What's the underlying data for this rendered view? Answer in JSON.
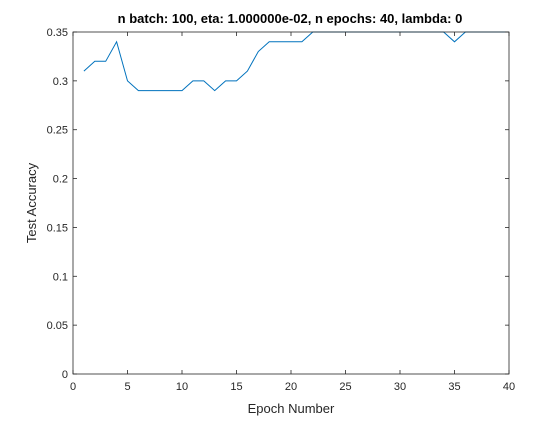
{
  "chart_data": {
    "type": "line",
    "title": "n batch: 100, eta: 1.000000e-02, n epochs: 40, lambda: 0",
    "xlabel": "Epoch Number",
    "ylabel": "Test Accuracy",
    "xlim": [
      0,
      40
    ],
    "ylim": [
      0,
      0.35
    ],
    "xticks": [
      0,
      5,
      10,
      15,
      20,
      25,
      30,
      35,
      40
    ],
    "xtick_labels": [
      "0",
      "5",
      "10",
      "15",
      "20",
      "25",
      "30",
      "35",
      "40"
    ],
    "yticks": [
      0,
      0.05,
      0.1,
      0.15,
      0.2,
      0.25,
      0.3,
      0.35
    ],
    "ytick_labels": [
      "0",
      "0.05",
      "0.1",
      "0.15",
      "0.2",
      "0.25",
      "0.3",
      "0.35"
    ],
    "grid": false,
    "series": [
      {
        "color": "#0072bd",
        "x": [
          1,
          2,
          3,
          4,
          5,
          6,
          7,
          8,
          9,
          10,
          11,
          12,
          13,
          14,
          15,
          16,
          17,
          18,
          19,
          20,
          21,
          22,
          23,
          24,
          25,
          26,
          27,
          28,
          29,
          30,
          31,
          32,
          33,
          34,
          35,
          36,
          37,
          38,
          39,
          40
        ],
        "y": [
          0.31,
          0.32,
          0.32,
          0.34,
          0.3,
          0.29,
          0.29,
          0.29,
          0.29,
          0.29,
          0.3,
          0.3,
          0.29,
          0.3,
          0.3,
          0.31,
          0.33,
          0.34,
          0.34,
          0.34,
          0.34,
          0.35,
          0.35,
          0.35,
          0.35,
          0.35,
          0.35,
          0.35,
          0.35,
          0.35,
          0.35,
          0.35,
          0.35,
          0.35,
          0.34,
          0.35,
          0.35,
          0.35,
          0.35,
          0.35
        ]
      }
    ]
  }
}
